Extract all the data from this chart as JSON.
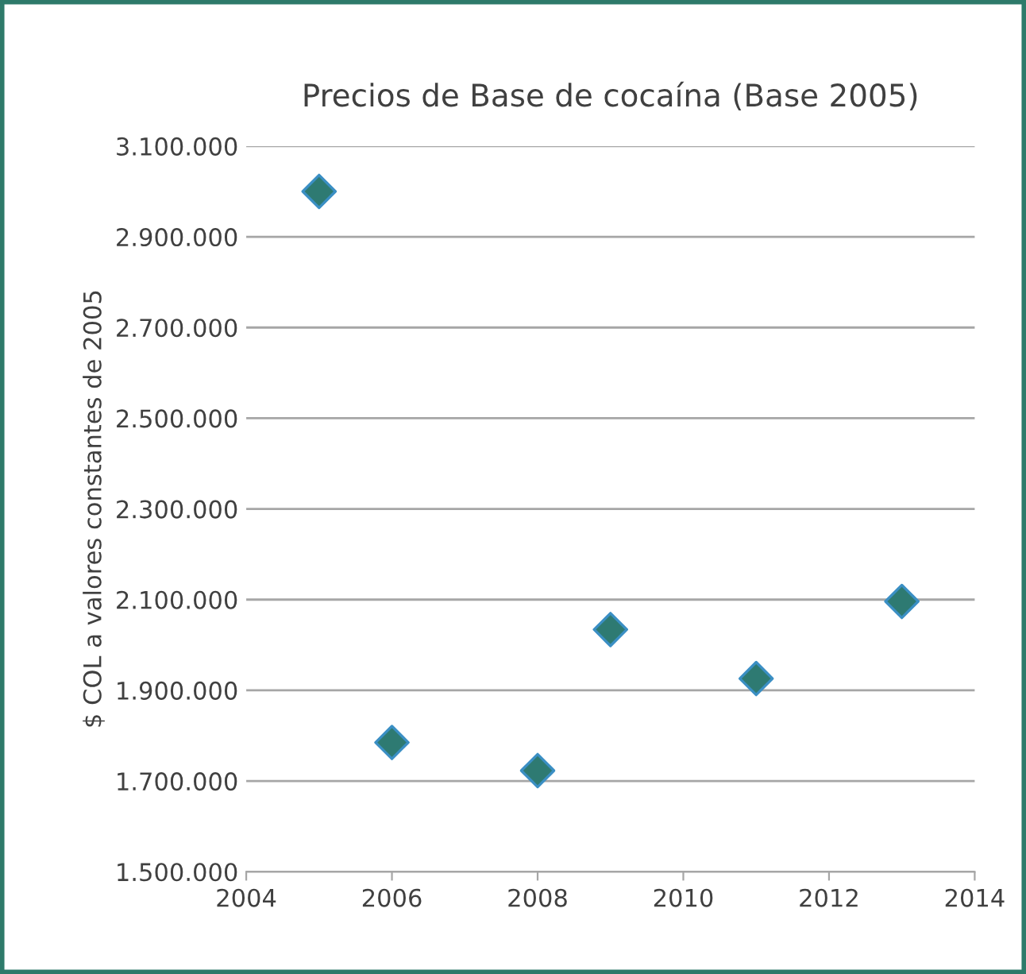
{
  "chart_data": {
    "type": "scatter",
    "title": "Precios de Base de cocaína (Base 2005)",
    "ylabel": "$ COL a valores constantes de 2005",
    "x": [
      2005,
      2006,
      2008,
      2009,
      2011,
      2013
    ],
    "series": [
      {
        "color": "#2e7a72",
        "values": [
          3000000,
          1785000,
          1723000,
          2034000,
          1926000,
          2096000
        ]
      }
    ],
    "marker": "diamond",
    "grid": "y",
    "xlim": [
      2004,
      2014
    ],
    "xticks": [
      2004,
      2006,
      2008,
      2010,
      2012,
      2014
    ],
    "ylim": [
      1500000,
      3100000
    ],
    "yticks": [
      {
        "value": 1500000,
        "label": "1.500.000"
      },
      {
        "value": 1700000,
        "label": "1.700.000"
      },
      {
        "value": 1900000,
        "label": "1.900.000"
      },
      {
        "value": 2100000,
        "label": "2.100.000"
      },
      {
        "value": 2300000,
        "label": "2.300.000"
      },
      {
        "value": 2500000,
        "label": "2.500.000"
      },
      {
        "value": 2700000,
        "label": "2.700.000"
      },
      {
        "value": 2900000,
        "label": "2.900.000"
      },
      {
        "value": 3100000,
        "label": "3.100.000"
      }
    ]
  }
}
